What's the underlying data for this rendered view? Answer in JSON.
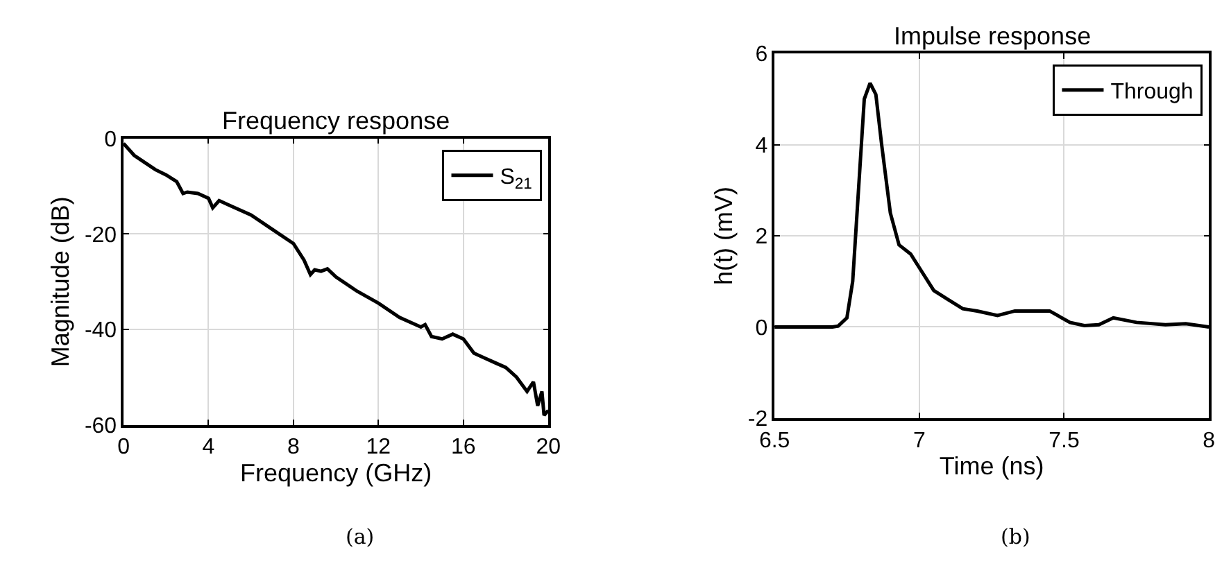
{
  "chart_data": [
    {
      "type": "line",
      "title": "Frequency response",
      "xlabel": "Frequency (GHz)",
      "ylabel": "Magnitude (dB)",
      "xlim": [
        0,
        20
      ],
      "xticks": [
        0,
        4,
        8,
        12,
        16,
        20
      ],
      "ylim": [
        -60,
        0
      ],
      "yticks": [
        -60,
        -40,
        -20,
        0
      ],
      "grid": true,
      "legend": "top right",
      "line_style": "solid",
      "annotations": [
        "(a)"
      ],
      "series": [
        {
          "name": "S$_{21}$",
          "color": "#000000",
          "x": [
            0,
            0.5,
            1,
            1.5,
            2,
            2.5,
            2.8,
            3,
            3.5,
            4,
            4.2,
            4.5,
            5,
            6,
            7,
            8,
            8.5,
            8.8,
            9,
            9.3,
            9.6,
            10,
            11,
            12,
            13,
            14,
            14.2,
            14.5,
            15,
            15.5,
            16,
            16.5,
            17,
            17.5,
            18,
            18.5,
            19,
            19.3,
            19.5,
            19.7,
            19.8,
            20
          ],
          "values": [
            -1,
            -3.5,
            -5,
            -6.5,
            -7.6,
            -9,
            -11.5,
            -11.2,
            -11.5,
            -12.5,
            -14.5,
            -13,
            -14,
            -16,
            -19,
            -22,
            -25.5,
            -28.5,
            -27.5,
            -27.8,
            -27.3,
            -29,
            -32,
            -34.5,
            -37.5,
            -39.5,
            -39,
            -41.5,
            -42,
            -41,
            -42,
            -45,
            -46,
            -47,
            -48,
            -50,
            -53,
            -51,
            -56,
            -53,
            -58,
            -57
          ]
        }
      ]
    },
    {
      "type": "line",
      "title": "Impulse response",
      "xlabel": "Time (ns)",
      "ylabel": "h(t) (mV)",
      "xlim": [
        6.5,
        8
      ],
      "xticks": [
        6.5,
        7,
        7.5,
        8
      ],
      "ylim": [
        -2,
        6
      ],
      "yticks": [
        -2,
        0,
        2,
        4,
        6
      ],
      "grid": true,
      "legend": "top right",
      "line_style": "solid",
      "annotations": [
        "(b)"
      ],
      "series": [
        {
          "name": "Through",
          "color": "#000000",
          "x": [
            6.5,
            6.6,
            6.7,
            6.72,
            6.75,
            6.77,
            6.79,
            6.81,
            6.83,
            6.85,
            6.87,
            6.9,
            6.93,
            6.97,
            7.0,
            7.05,
            7.1,
            7.15,
            7.2,
            7.27,
            7.33,
            7.45,
            7.52,
            7.57,
            7.62,
            7.67,
            7.75,
            7.85,
            7.92,
            8
          ],
          "values": [
            0,
            0,
            0,
            0.02,
            0.2,
            1,
            3,
            5,
            5.35,
            5.1,
            4,
            2.5,
            1.8,
            1.6,
            1.3,
            0.8,
            0.6,
            0.4,
            0.35,
            0.25,
            0.35,
            0.35,
            0.1,
            0.03,
            0.05,
            0.2,
            0.1,
            0.05,
            0.07,
            0
          ]
        }
      ]
    }
  ]
}
